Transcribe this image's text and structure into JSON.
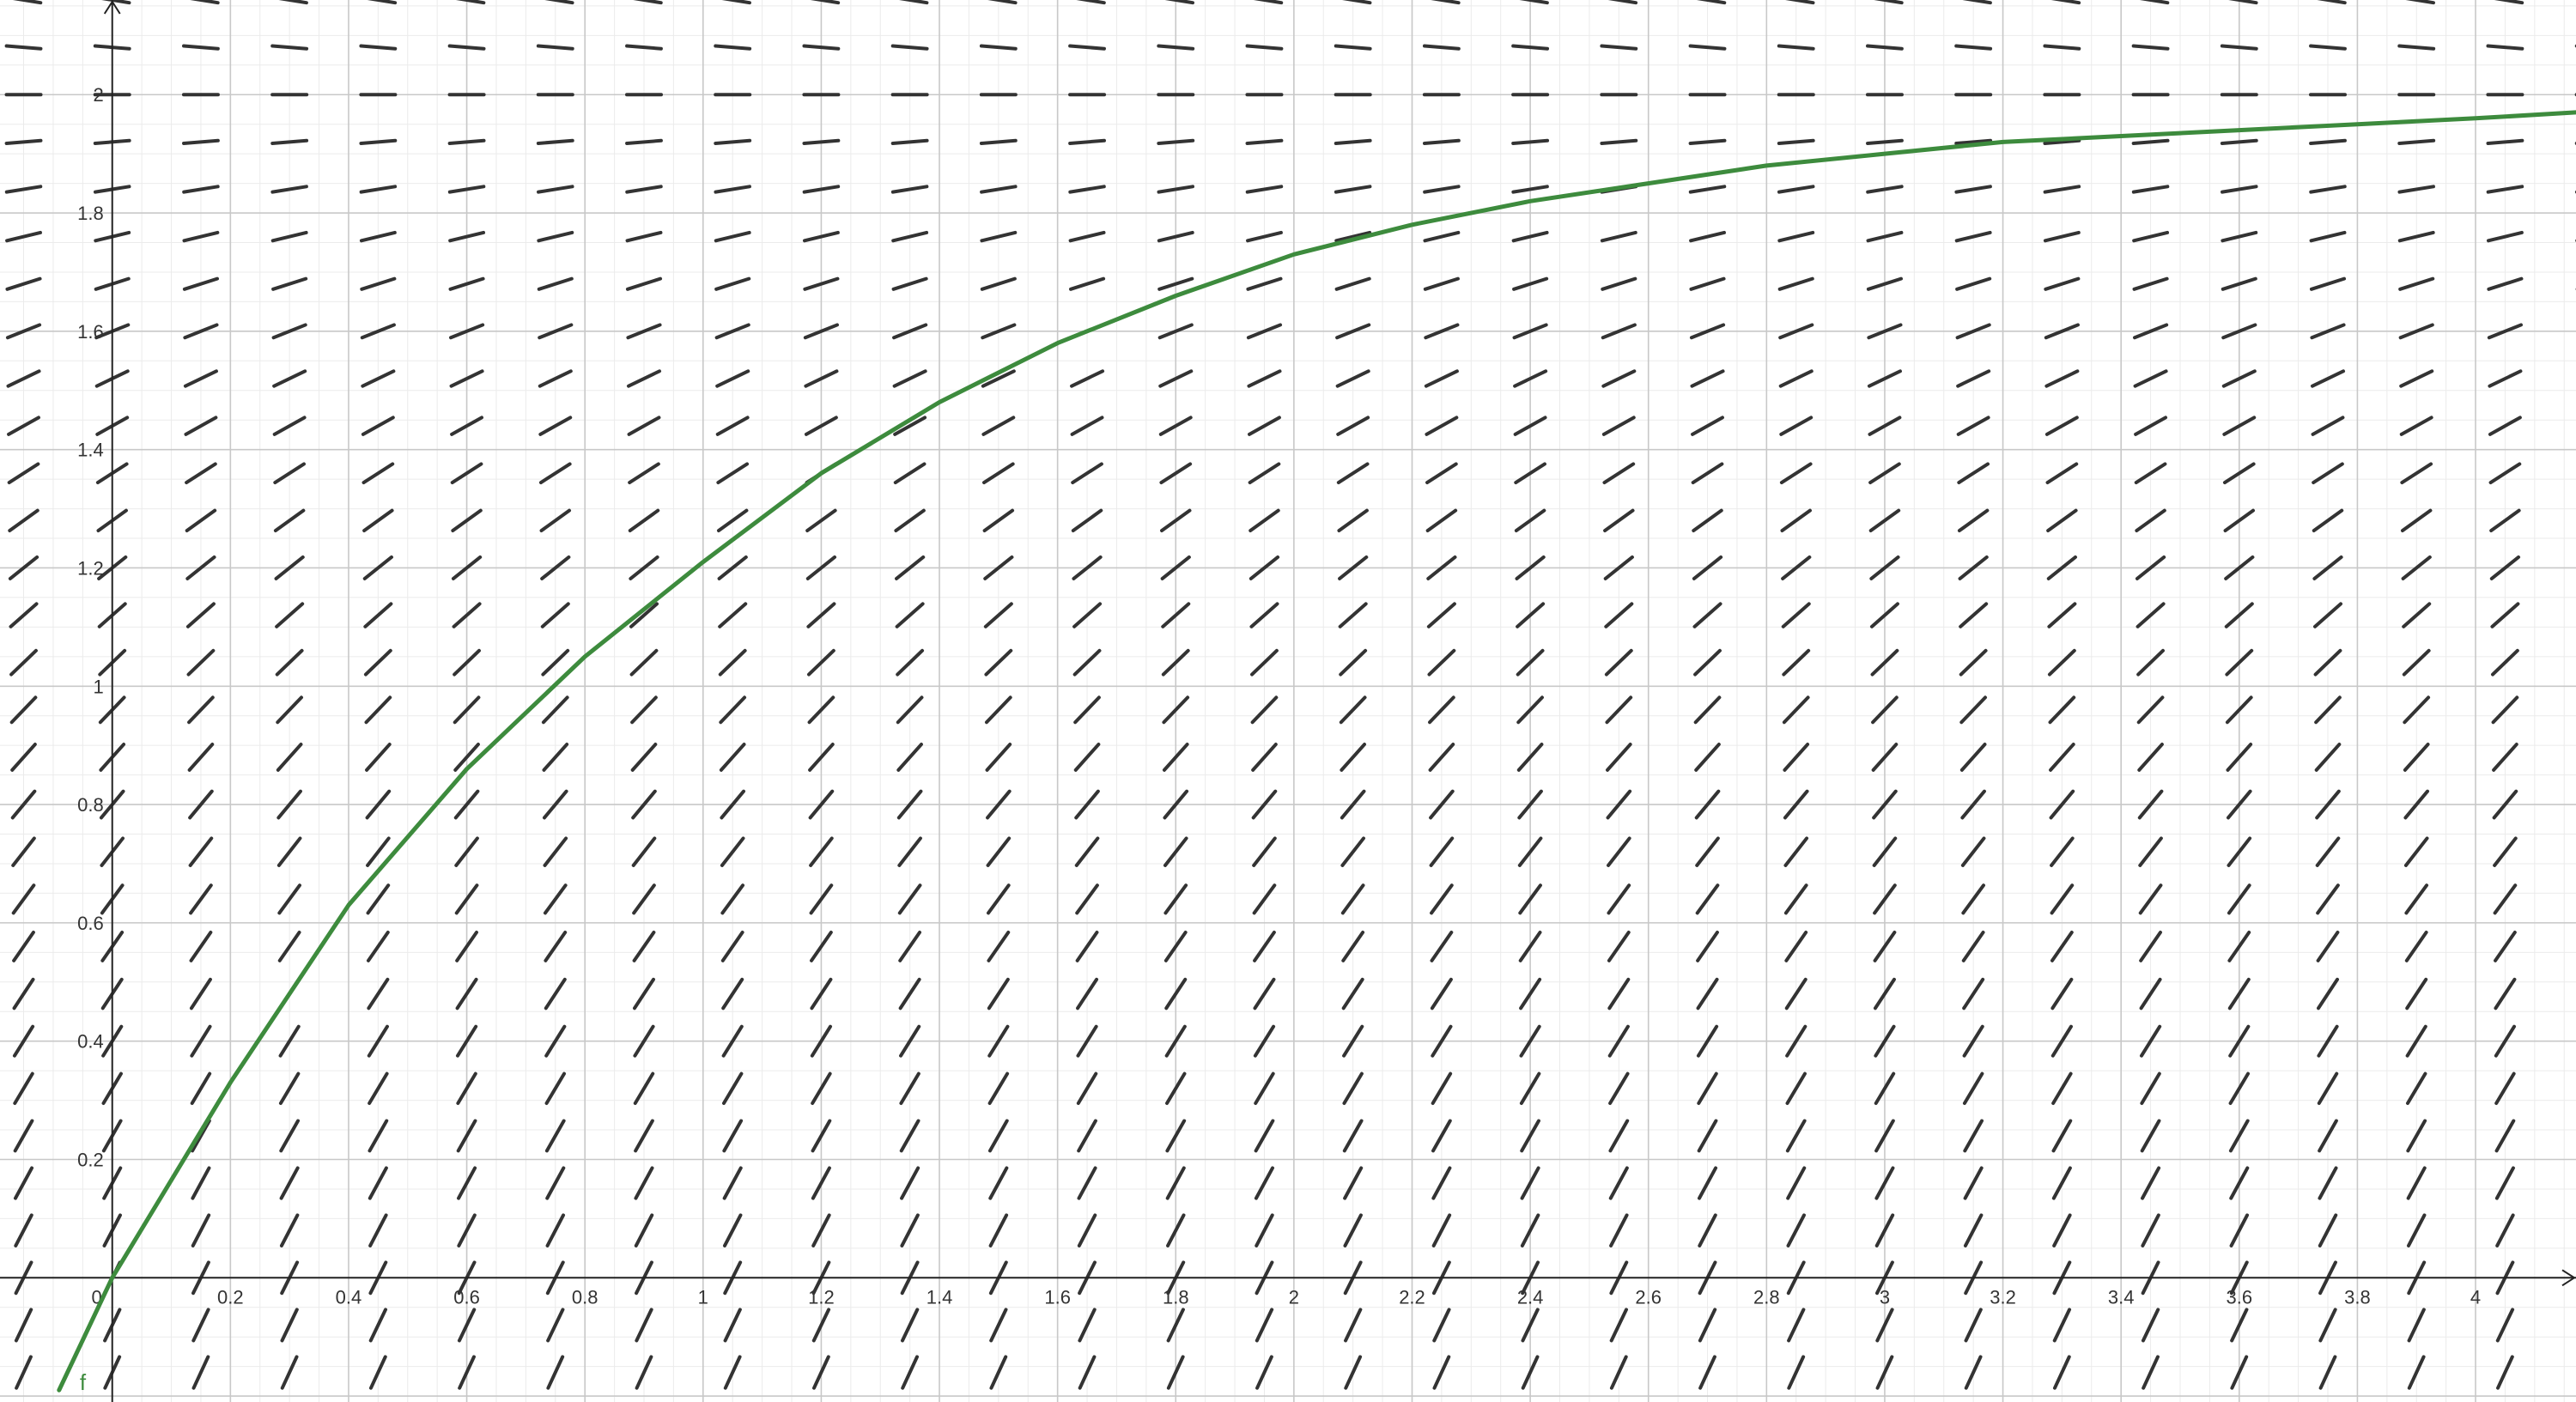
{
  "chart_data": {
    "type": "line",
    "title": "",
    "xlabel": "",
    "ylabel": "",
    "xlim": [
      -0.19,
      4.17
    ],
    "ylim": [
      -0.21,
      2.16
    ],
    "major_grid": 0.2,
    "minor_grid": 0.05,
    "x_ticks": [
      "0.2",
      "0.4",
      "0.6",
      "0.8",
      "1",
      "1.2",
      "1.4",
      "1.6",
      "1.8",
      "2",
      "2.2",
      "2.4",
      "2.6",
      "2.8",
      "3",
      "3.2",
      "3.4",
      "3.6",
      "3.8",
      "4"
    ],
    "y_ticks": [
      "0.2",
      "0.4",
      "0.6",
      "0.8",
      "1",
      "1.2",
      "1.4",
      "1.6",
      "1.8",
      "2"
    ],
    "origin_label": "0",
    "slope_field": {
      "equation": "dy/dx = 2 - y",
      "spacing_x": 0.15,
      "spacing_y": 0.08,
      "color": "#333333"
    },
    "series": [
      {
        "name": "f",
        "color": "#3d8b3d",
        "x": [
          -0.09,
          0,
          0.2,
          0.4,
          0.6,
          0.8,
          1,
          1.2,
          1.4,
          1.6,
          1.8,
          2,
          2.2,
          2.4,
          2.6,
          2.8,
          3,
          3.2,
          3.4,
          3.6,
          3.8,
          4,
          4.17
        ],
        "y": [
          -0.19,
          0,
          0.33,
          0.63,
          0.86,
          1.05,
          1.21,
          1.36,
          1.48,
          1.58,
          1.66,
          1.73,
          1.78,
          1.82,
          1.85,
          1.88,
          1.9,
          1.92,
          1.93,
          1.94,
          1.95,
          1.96,
          1.97
        ]
      }
    ]
  }
}
